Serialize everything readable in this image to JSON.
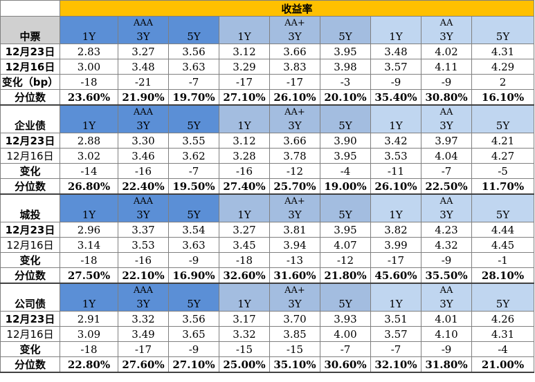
{
  "title": "收益率",
  "grades": [
    "AAA",
    "AA+",
    "AA"
  ],
  "tenors": [
    "1Y",
    "3Y",
    "5Y"
  ],
  "sections": [
    {
      "name": "中票",
      "rows": [
        {
          "label": "12月23日",
          "values": [
            "2.83",
            "3.27",
            "3.56",
            "3.12",
            "3.66",
            "3.95",
            "3.48",
            "4.02",
            "4.31"
          ]
        },
        {
          "label": "12月16日",
          "values": [
            "3.00",
            "3.48",
            "3.63",
            "3.29",
            "3.83",
            "3.98",
            "3.57",
            "4.11",
            "4.29"
          ]
        },
        {
          "label": "变化（bp）",
          "values": [
            "-18",
            "-21",
            "-7",
            "-17",
            "-17",
            "-3",
            "-9",
            "-9",
            "2"
          ]
        },
        {
          "label": "分位数",
          "values": [
            "23.60%",
            "21.90%",
            "19.70%",
            "27.10%",
            "26.10%",
            "20.10%",
            "35.40%",
            "30.80%",
            "16.10%"
          ]
        }
      ]
    },
    {
      "name": "企业债",
      "rows": [
        {
          "label": "12月23日",
          "values": [
            "2.88",
            "3.30",
            "3.55",
            "3.12",
            "3.66",
            "3.90",
            "3.42",
            "3.97",
            "4.21"
          ]
        },
        {
          "label": "12月16日",
          "values": [
            "3.02",
            "3.46",
            "3.62",
            "3.28",
            "3.78",
            "3.95",
            "3.53",
            "4.04",
            "4.27"
          ]
        },
        {
          "label": "变化",
          "values": [
            "-14",
            "-16",
            "-7",
            "-16",
            "-12",
            "-4",
            "-11",
            "-7",
            "-5"
          ]
        },
        {
          "label": "分位数",
          "values": [
            "26.80%",
            "22.40%",
            "19.50%",
            "27.40%",
            "25.70%",
            "19.00%",
            "26.10%",
            "22.50%",
            "11.70%"
          ]
        }
      ]
    },
    {
      "name": "城投",
      "rows": [
        {
          "label": "12月23日",
          "values": [
            "2.96",
            "3.37",
            "3.54",
            "3.27",
            "3.81",
            "3.95",
            "3.82",
            "4.23",
            "4.44"
          ]
        },
        {
          "label": "12月16日",
          "values": [
            "3.14",
            "3.53",
            "3.63",
            "3.45",
            "3.94",
            "4.07",
            "3.99",
            "4.32",
            "4.45"
          ]
        },
        {
          "label": "变化",
          "values": [
            "-18",
            "-16",
            "-9",
            "-18",
            "-13",
            "-12",
            "-17",
            "-9",
            "-1"
          ]
        },
        {
          "label": "分位数",
          "values": [
            "27.50%",
            "22.10%",
            "16.90%",
            "32.60%",
            "31.60%",
            "21.80%",
            "45.60%",
            "35.50%",
            "28.10%"
          ]
        }
      ]
    },
    {
      "name": "公司债",
      "rows": [
        {
          "label": "12月23日",
          "values": [
            "2.91",
            "3.32",
            "3.56",
            "3.17",
            "3.70",
            "3.93",
            "3.51",
            "4.01",
            "4.26"
          ]
        },
        {
          "label": "12月16日",
          "values": [
            "3.09",
            "3.49",
            "3.65",
            "3.32",
            "3.85",
            "4.00",
            "3.57",
            "4.10",
            "4.31"
          ]
        },
        {
          "label": "变化",
          "values": [
            "-18",
            "-17",
            "-9",
            "-15",
            "-15",
            "-7",
            "-7",
            "-9",
            "-4"
          ]
        },
        {
          "label": "分位数",
          "values": [
            "22.80%",
            "27.60%",
            "27.10%",
            "25.00%",
            "35.10%",
            "30.60%",
            "32.10%",
            "31.80%",
            "21.00%"
          ]
        }
      ]
    }
  ],
  "colors": {
    "title_bg": "#ffc000",
    "aaa_bg": "#5b8fd6",
    "aa_plus_bg": "#a3bde0",
    "aa_bg": "#c0d6f0",
    "first_header_bg": "#d0d0d0"
  }
}
